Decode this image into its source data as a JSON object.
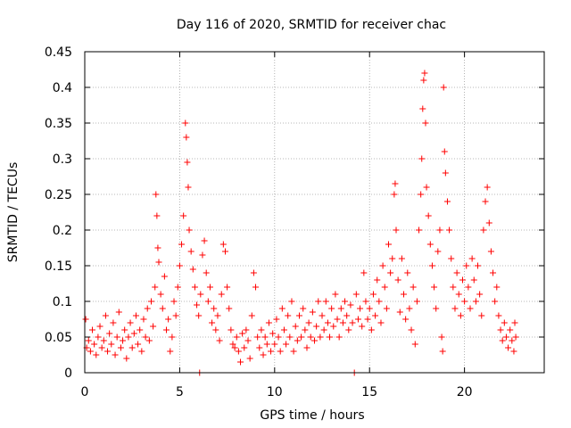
{
  "chart_data": {
    "type": "scatter",
    "title": "Day 116 of 2020, SRMTID for receiver chac",
    "xlabel": "GPS time / hours",
    "ylabel": "SRMTID / TECUs",
    "xlim": [
      0,
      24.2
    ],
    "ylim": [
      0,
      0.45
    ],
    "xticks": [
      0,
      5,
      10,
      15,
      20
    ],
    "xtick_labels": [
      "0",
      "5",
      "10",
      "15",
      "20"
    ],
    "yticks": [
      0,
      0.05,
      0.1,
      0.15,
      0.2,
      0.25,
      0.3,
      0.35,
      0.4,
      0.45
    ],
    "ytick_labels": [
      "0",
      "0.05",
      "0.1",
      "0.15",
      "0.2",
      "0.25",
      "0.3",
      "0.35",
      "0.4",
      "0.45"
    ],
    "grid": true,
    "marker": "+",
    "series": [
      {
        "name": "SRMTID",
        "color": "#ff0000",
        "points": [
          [
            0.05,
            0.075
          ],
          [
            0.1,
            0.035
          ],
          [
            0.2,
            0.045
          ],
          [
            0.3,
            0.03
          ],
          [
            0.4,
            0.06
          ],
          [
            0.5,
            0.04
          ],
          [
            0.6,
            0.025
          ],
          [
            0.7,
            0.05
          ],
          [
            0.8,
            0.065
          ],
          [
            0.9,
            0.035
          ],
          [
            1.0,
            0.045
          ],
          [
            1.1,
            0.08
          ],
          [
            1.2,
            0.03
          ],
          [
            1.3,
            0.055
          ],
          [
            1.4,
            0.04
          ],
          [
            1.5,
            0.07
          ],
          [
            1.6,
            0.025
          ],
          [
            1.7,
            0.05
          ],
          [
            1.8,
            0.085
          ],
          [
            1.9,
            0.035
          ],
          [
            2.0,
            0.045
          ],
          [
            2.1,
            0.06
          ],
          [
            2.2,
            0.02
          ],
          [
            2.3,
            0.05
          ],
          [
            2.4,
            0.07
          ],
          [
            2.5,
            0.035
          ],
          [
            2.6,
            0.055
          ],
          [
            2.7,
            0.08
          ],
          [
            2.8,
            0.04
          ],
          [
            2.9,
            0.06
          ],
          [
            3.0,
            0.03
          ],
          [
            3.1,
            0.075
          ],
          [
            3.2,
            0.05
          ],
          [
            3.3,
            0.09
          ],
          [
            3.4,
            0.045
          ],
          [
            3.5,
            0.1
          ],
          [
            3.6,
            0.065
          ],
          [
            3.7,
            0.12
          ],
          [
            3.75,
            0.25
          ],
          [
            3.8,
            0.22
          ],
          [
            3.85,
            0.175
          ],
          [
            3.9,
            0.155
          ],
          [
            4.0,
            0.11
          ],
          [
            4.1,
            0.09
          ],
          [
            4.2,
            0.135
          ],
          [
            4.3,
            0.06
          ],
          [
            4.4,
            0.075
          ],
          [
            4.5,
            0.03
          ],
          [
            4.6,
            0.05
          ],
          [
            4.7,
            0.1
          ],
          [
            4.8,
            0.08
          ],
          [
            4.9,
            0.12
          ],
          [
            5.0,
            0.15
          ],
          [
            5.1,
            0.18
          ],
          [
            5.2,
            0.22
          ],
          [
            5.3,
            0.35
          ],
          [
            5.35,
            0.33
          ],
          [
            5.4,
            0.295
          ],
          [
            5.45,
            0.26
          ],
          [
            5.5,
            0.2
          ],
          [
            5.6,
            0.17
          ],
          [
            5.7,
            0.145
          ],
          [
            5.8,
            0.12
          ],
          [
            5.9,
            0.095
          ],
          [
            6.0,
            0.08
          ],
          [
            6.05,
            0.0
          ],
          [
            6.1,
            0.11
          ],
          [
            6.2,
            0.165
          ],
          [
            6.3,
            0.185
          ],
          [
            6.4,
            0.14
          ],
          [
            6.5,
            0.1
          ],
          [
            6.6,
            0.12
          ],
          [
            6.7,
            0.07
          ],
          [
            6.8,
            0.09
          ],
          [
            6.9,
            0.06
          ],
          [
            7.0,
            0.08
          ],
          [
            7.1,
            0.045
          ],
          [
            7.2,
            0.11
          ],
          [
            7.3,
            0.18
          ],
          [
            7.4,
            0.17
          ],
          [
            7.5,
            0.12
          ],
          [
            7.6,
            0.09
          ],
          [
            7.7,
            0.06
          ],
          [
            7.8,
            0.04
          ],
          [
            7.9,
            0.035
          ],
          [
            8.0,
            0.05
          ],
          [
            8.1,
            0.03
          ],
          [
            8.2,
            0.015
          ],
          [
            8.3,
            0.055
          ],
          [
            8.4,
            0.035
          ],
          [
            8.5,
            0.06
          ],
          [
            8.6,
            0.045
          ],
          [
            8.7,
            0.02
          ],
          [
            8.8,
            0.08
          ],
          [
            8.9,
            0.14
          ],
          [
            9.0,
            0.12
          ],
          [
            9.1,
            0.05
          ],
          [
            9.2,
            0.035
          ],
          [
            9.3,
            0.06
          ],
          [
            9.4,
            0.025
          ],
          [
            9.5,
            0.05
          ],
          [
            9.6,
            0.04
          ],
          [
            9.7,
            0.07
          ],
          [
            9.8,
            0.03
          ],
          [
            9.9,
            0.055
          ],
          [
            10.0,
            0.04
          ],
          [
            10.1,
            0.075
          ],
          [
            10.2,
            0.05
          ],
          [
            10.3,
            0.03
          ],
          [
            10.4,
            0.09
          ],
          [
            10.5,
            0.06
          ],
          [
            10.6,
            0.04
          ],
          [
            10.7,
            0.08
          ],
          [
            10.8,
            0.05
          ],
          [
            10.9,
            0.1
          ],
          [
            11.0,
            0.03
          ],
          [
            11.1,
            0.065
          ],
          [
            11.2,
            0.045
          ],
          [
            11.3,
            0.08
          ],
          [
            11.4,
            0.05
          ],
          [
            11.5,
            0.09
          ],
          [
            11.6,
            0.06
          ],
          [
            11.7,
            0.035
          ],
          [
            11.8,
            0.07
          ],
          [
            11.9,
            0.05
          ],
          [
            12.0,
            0.085
          ],
          [
            12.1,
            0.045
          ],
          [
            12.2,
            0.065
          ],
          [
            12.3,
            0.1
          ],
          [
            12.4,
            0.05
          ],
          [
            12.5,
            0.08
          ],
          [
            12.6,
            0.06
          ],
          [
            12.7,
            0.1
          ],
          [
            12.8,
            0.07
          ],
          [
            12.9,
            0.05
          ],
          [
            13.0,
            0.09
          ],
          [
            13.1,
            0.065
          ],
          [
            13.2,
            0.11
          ],
          [
            13.3,
            0.075
          ],
          [
            13.4,
            0.05
          ],
          [
            13.5,
            0.09
          ],
          [
            13.6,
            0.07
          ],
          [
            13.7,
            0.1
          ],
          [
            13.8,
            0.08
          ],
          [
            13.9,
            0.06
          ],
          [
            14.0,
            0.095
          ],
          [
            14.1,
            0.07
          ],
          [
            14.2,
            0.0
          ],
          [
            14.3,
            0.11
          ],
          [
            14.4,
            0.075
          ],
          [
            14.5,
            0.09
          ],
          [
            14.6,
            0.065
          ],
          [
            14.7,
            0.14
          ],
          [
            14.8,
            0.1
          ],
          [
            14.9,
            0.075
          ],
          [
            15.0,
            0.09
          ],
          [
            15.1,
            0.06
          ],
          [
            15.2,
            0.11
          ],
          [
            15.3,
            0.08
          ],
          [
            15.4,
            0.13
          ],
          [
            15.5,
            0.1
          ],
          [
            15.6,
            0.07
          ],
          [
            15.7,
            0.15
          ],
          [
            15.8,
            0.12
          ],
          [
            15.9,
            0.09
          ],
          [
            16.0,
            0.18
          ],
          [
            16.1,
            0.14
          ],
          [
            16.2,
            0.16
          ],
          [
            16.3,
            0.25
          ],
          [
            16.35,
            0.265
          ],
          [
            16.4,
            0.2
          ],
          [
            16.5,
            0.13
          ],
          [
            16.6,
            0.085
          ],
          [
            16.7,
            0.16
          ],
          [
            16.8,
            0.11
          ],
          [
            16.9,
            0.075
          ],
          [
            17.0,
            0.14
          ],
          [
            17.1,
            0.09
          ],
          [
            17.2,
            0.06
          ],
          [
            17.3,
            0.12
          ],
          [
            17.4,
            0.04
          ],
          [
            17.5,
            0.1
          ],
          [
            17.6,
            0.2
          ],
          [
            17.7,
            0.25
          ],
          [
            17.75,
            0.3
          ],
          [
            17.8,
            0.37
          ],
          [
            17.85,
            0.41
          ],
          [
            17.9,
            0.42
          ],
          [
            17.95,
            0.35
          ],
          [
            18.0,
            0.26
          ],
          [
            18.1,
            0.22
          ],
          [
            18.2,
            0.18
          ],
          [
            18.3,
            0.15
          ],
          [
            18.4,
            0.12
          ],
          [
            18.5,
            0.09
          ],
          [
            18.6,
            0.17
          ],
          [
            18.7,
            0.2
          ],
          [
            18.8,
            0.05
          ],
          [
            18.85,
            0.03
          ],
          [
            18.9,
            0.4
          ],
          [
            18.95,
            0.31
          ],
          [
            19.0,
            0.28
          ],
          [
            19.1,
            0.24
          ],
          [
            19.2,
            0.2
          ],
          [
            19.3,
            0.16
          ],
          [
            19.4,
            0.12
          ],
          [
            19.5,
            0.09
          ],
          [
            19.6,
            0.14
          ],
          [
            19.7,
            0.11
          ],
          [
            19.8,
            0.08
          ],
          [
            19.9,
            0.13
          ],
          [
            20.0,
            0.1
          ],
          [
            20.1,
            0.15
          ],
          [
            20.2,
            0.12
          ],
          [
            20.3,
            0.09
          ],
          [
            20.4,
            0.16
          ],
          [
            20.5,
            0.13
          ],
          [
            20.6,
            0.1
          ],
          [
            20.7,
            0.15
          ],
          [
            20.8,
            0.11
          ],
          [
            20.9,
            0.08
          ],
          [
            21.0,
            0.2
          ],
          [
            21.1,
            0.24
          ],
          [
            21.2,
            0.26
          ],
          [
            21.3,
            0.21
          ],
          [
            21.4,
            0.17
          ],
          [
            21.5,
            0.14
          ],
          [
            21.6,
            0.1
          ],
          [
            21.7,
            0.12
          ],
          [
            21.8,
            0.08
          ],
          [
            21.9,
            0.06
          ],
          [
            22.0,
            0.045
          ],
          [
            22.1,
            0.07
          ],
          [
            22.2,
            0.05
          ],
          [
            22.3,
            0.035
          ],
          [
            22.4,
            0.06
          ],
          [
            22.5,
            0.045
          ],
          [
            22.6,
            0.03
          ],
          [
            22.65,
            0.07
          ],
          [
            22.7,
            0.05
          ]
        ]
      }
    ]
  }
}
